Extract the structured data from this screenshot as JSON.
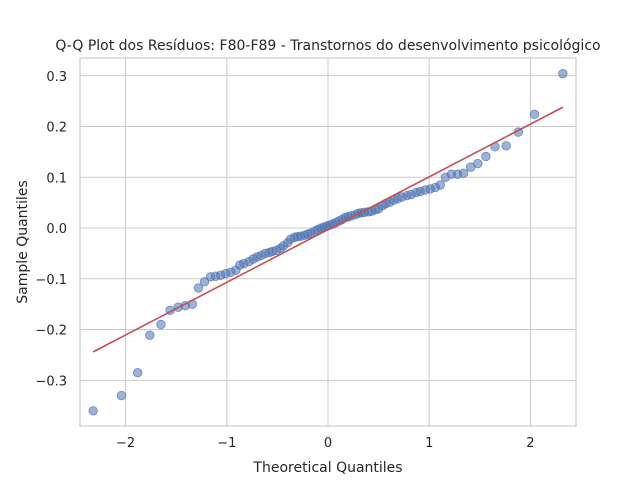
{
  "chart_data": {
    "type": "scatter",
    "title": "Q-Q Plot dos Resíduos: F80-F89 - Transtornos do desenvolvimento psicológico",
    "xlabel": "Theoretical Quantiles",
    "ylabel": "Sample Quantiles",
    "xlim": [
      -2.45,
      2.45
    ],
    "ylim": [
      -0.39,
      0.335
    ],
    "xticks": [
      -2,
      -1,
      0,
      1,
      2
    ],
    "xtick_labels": [
      "−2",
      "−1",
      "0",
      "1",
      "2"
    ],
    "yticks": [
      -0.3,
      -0.2,
      -0.1,
      0.0,
      0.1,
      0.2,
      0.3
    ],
    "ytick_labels": [
      "−0.3",
      "−0.2",
      "−0.1",
      "0.0",
      "0.1",
      "0.2",
      "0.3"
    ],
    "grid": true,
    "points_color": "#4c72b0",
    "line_color": "#c44e52",
    "reference_line": {
      "x": [
        -2.32,
        2.32
      ],
      "y": [
        -0.244,
        0.238
      ]
    },
    "points": [
      [
        -2.32,
        -0.36
      ],
      [
        -2.04,
        -0.33
      ],
      [
        -1.88,
        -0.285
      ],
      [
        -1.76,
        -0.211
      ],
      [
        -1.65,
        -0.19
      ],
      [
        -1.56,
        -0.162
      ],
      [
        -1.48,
        -0.156
      ],
      [
        -1.41,
        -0.153
      ],
      [
        -1.34,
        -0.15
      ],
      [
        -1.28,
        -0.118
      ],
      [
        -1.22,
        -0.106
      ],
      [
        -1.16,
        -0.096
      ],
      [
        -1.11,
        -0.095
      ],
      [
        -1.06,
        -0.093
      ],
      [
        -1.01,
        -0.09
      ],
      [
        -0.96,
        -0.087
      ],
      [
        -0.91,
        -0.083
      ],
      [
        -0.87,
        -0.073
      ],
      [
        -0.83,
        -0.07
      ],
      [
        -0.78,
        -0.066
      ],
      [
        -0.74,
        -0.061
      ],
      [
        -0.7,
        -0.057
      ],
      [
        -0.66,
        -0.054
      ],
      [
        -0.62,
        -0.05
      ],
      [
        -0.58,
        -0.048
      ],
      [
        -0.55,
        -0.046
      ],
      [
        -0.51,
        -0.044
      ],
      [
        -0.47,
        -0.04
      ],
      [
        -0.44,
        -0.035
      ],
      [
        -0.4,
        -0.029
      ],
      [
        -0.37,
        -0.022
      ],
      [
        -0.33,
        -0.018
      ],
      [
        -0.3,
        -0.017
      ],
      [
        -0.27,
        -0.016
      ],
      [
        -0.23,
        -0.014
      ],
      [
        -0.2,
        -0.012
      ],
      [
        -0.17,
        -0.01
      ],
      [
        -0.13,
        -0.006
      ],
      [
        -0.1,
        -0.003
      ],
      [
        -0.07,
        0.0
      ],
      [
        -0.04,
        0.002
      ],
      [
        -0.01,
        0.004
      ],
      [
        0.02,
        0.006
      ],
      [
        0.05,
        0.008
      ],
      [
        0.08,
        0.011
      ],
      [
        0.11,
        0.014
      ],
      [
        0.14,
        0.017
      ],
      [
        0.17,
        0.021
      ],
      [
        0.2,
        0.022
      ],
      [
        0.23,
        0.024
      ],
      [
        0.27,
        0.026
      ],
      [
        0.3,
        0.029
      ],
      [
        0.33,
        0.03
      ],
      [
        0.36,
        0.031
      ],
      [
        0.4,
        0.032
      ],
      [
        0.43,
        0.033
      ],
      [
        0.47,
        0.036
      ],
      [
        0.5,
        0.038
      ],
      [
        0.54,
        0.044
      ],
      [
        0.57,
        0.048
      ],
      [
        0.61,
        0.051
      ],
      [
        0.65,
        0.055
      ],
      [
        0.69,
        0.058
      ],
      [
        0.73,
        0.061
      ],
      [
        0.78,
        0.064
      ],
      [
        0.82,
        0.066
      ],
      [
        0.87,
        0.07
      ],
      [
        0.91,
        0.072
      ],
      [
        0.96,
        0.075
      ],
      [
        1.01,
        0.077
      ],
      [
        1.06,
        0.08
      ],
      [
        1.11,
        0.085
      ],
      [
        1.16,
        0.1
      ],
      [
        1.22,
        0.106
      ],
      [
        1.28,
        0.106
      ],
      [
        1.34,
        0.108
      ],
      [
        1.41,
        0.12
      ],
      [
        1.48,
        0.127
      ],
      [
        1.56,
        0.141
      ],
      [
        1.65,
        0.16
      ],
      [
        1.76,
        0.162
      ],
      [
        1.88,
        0.189
      ],
      [
        2.04,
        0.224
      ],
      [
        2.32,
        0.304
      ]
    ]
  }
}
